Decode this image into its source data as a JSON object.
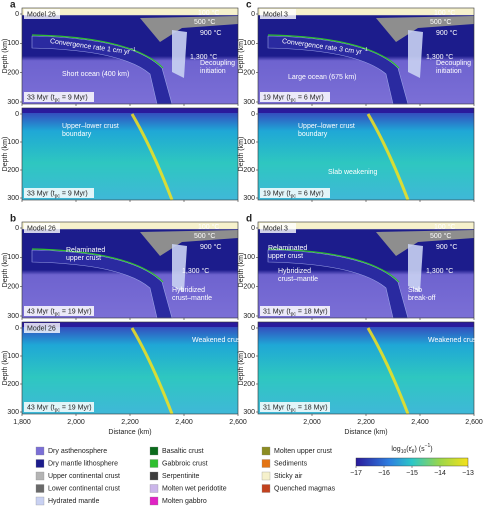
{
  "panels": [
    {
      "label": "a",
      "model": "Model 26",
      "time": [
        "33 Myr (t",
        "pc",
        " = 9 Myr)"
      ],
      "kind": "composition",
      "notes": [
        {
          "lines": [
            "100 °C"
          ]
        },
        {
          "lines": [
            "500 °C"
          ]
        },
        {
          "lines": [
            "900 °C"
          ]
        },
        {
          "lines": [
            "Convergence rate 1 cm yr"
          ],
          "sup": "−1"
        },
        {
          "lines": [
            "1,300 °C"
          ]
        },
        {
          "lines": [
            "Short ocean (400 km)"
          ]
        },
        {
          "lines": [
            "Decoupling",
            "initiation"
          ]
        }
      ]
    },
    {
      "label": "c",
      "model": "Model 3",
      "time": [
        "19 Myr (t",
        "pc",
        " = 6 Myr)"
      ],
      "kind": "composition",
      "notes": [
        {
          "lines": [
            "100 °C"
          ]
        },
        {
          "lines": [
            "500 °C"
          ]
        },
        {
          "lines": [
            "900 °C"
          ]
        },
        {
          "lines": [
            "Convergence rate 3 cm yr"
          ],
          "sup": "−1"
        },
        {
          "lines": [
            "1,300 °C"
          ]
        },
        {
          "lines": [
            "Large ocean (675 km)"
          ]
        },
        {
          "lines": [
            "Decoupling",
            "initiation"
          ]
        }
      ]
    },
    {
      "label": null,
      "model": null,
      "time": [
        "33 Myr (t",
        "pc",
        " = 9 Myr)"
      ],
      "kind": "strain",
      "notes": [
        {
          "lines": [
            "Upper–lower crust",
            "boundary"
          ]
        }
      ]
    },
    {
      "label": null,
      "model": null,
      "time": [
        "19 Myr (t",
        "pc",
        " = 6 Myr)"
      ],
      "kind": "strain",
      "notes": [
        {
          "lines": [
            "Upper–lower crust",
            "boundary"
          ]
        },
        {
          "lines": [
            "Slab weakening"
          ]
        }
      ]
    },
    {
      "label": "b",
      "model": "Model 26",
      "time": [
        "43 Myr (t",
        "pc",
        " = 19 Myr)"
      ],
      "kind": "composition",
      "notes": [
        {
          "lines": [
            "100 °C"
          ]
        },
        {
          "lines": [
            "500 °C"
          ]
        },
        {
          "lines": [
            "900 °C"
          ]
        },
        {
          "lines": [
            "1,300 °C"
          ]
        },
        {
          "lines": [
            "Relaminated",
            "upper crust"
          ]
        },
        {
          "lines": [
            "Hybridized",
            "crust–mantle"
          ]
        }
      ]
    },
    {
      "label": "d",
      "model": "Model 3",
      "time": [
        "31 Myr (t",
        "pc",
        " = 18 Myr)"
      ],
      "kind": "composition",
      "notes": [
        {
          "lines": [
            "100 °C"
          ]
        },
        {
          "lines": [
            "500 °C"
          ]
        },
        {
          "lines": [
            "900 °C"
          ]
        },
        {
          "lines": [
            "1,300 °C"
          ]
        },
        {
          "lines": [
            "Relaminated",
            "upper crust"
          ]
        },
        {
          "lines": [
            "Hybridized",
            "crust–mantle"
          ]
        },
        {
          "lines": [
            "Slab",
            "break-off"
          ]
        }
      ]
    },
    {
      "label": null,
      "model": "Model 26",
      "time": [
        "43 Myr (t",
        "pc",
        " = 19 Myr)"
      ],
      "kind": "strain",
      "notes": [
        {
          "lines": [
            "Weakened crust"
          ]
        }
      ]
    },
    {
      "label": null,
      "model": null,
      "time": [
        "31 Myr (t",
        "pc",
        " = 18 Myr)"
      ],
      "kind": "strain",
      "notes": [
        {
          "lines": [
            "Weakened crust"
          ]
        }
      ]
    }
  ],
  "y_axis": {
    "label": "Depth (km)",
    "ticks": [
      0,
      100,
      200,
      300
    ],
    "lim": [
      0,
      300
    ]
  },
  "x_axis": {
    "label": "Distance (km)",
    "lim": [
      1800,
      2600
    ],
    "left_ticks": [
      {
        "value": 1800,
        "label": "1,800"
      },
      {
        "value": 2000,
        "label": "2,000"
      },
      {
        "value": 2200,
        "label": "2,200"
      },
      {
        "value": 2400,
        "label": "2,400"
      },
      {
        "value": 2600,
        "label": "2,600"
      }
    ],
    "right_ticks": [
      {
        "value": 2000,
        "label": "2,000"
      },
      {
        "value": 2200,
        "label": "2,200"
      },
      {
        "value": 2400,
        "label": "2,400"
      },
      {
        "value": 2600,
        "label": "2,600"
      }
    ]
  },
  "legend": [
    {
      "name": "Dry asthenosphere",
      "color": "#7b6fd6"
    },
    {
      "name": "Dry mantle lithosphere",
      "color": "#1c1c8c"
    },
    {
      "name": "Upper continental crust",
      "color": "#b4b4b4"
    },
    {
      "name": "Lower continental crust",
      "color": "#6a6a6a"
    },
    {
      "name": "Hydrated mantle",
      "color": "#c9d1f2"
    },
    {
      "name": "Basaltic crust",
      "color": "#0b6b1c"
    },
    {
      "name": "Gabbroic crust",
      "color": "#2fbf2f"
    },
    {
      "name": "Serpentinite",
      "color": "#3d3d3d"
    },
    {
      "name": "Molten wet peridotite",
      "color": "#cbb6ea"
    },
    {
      "name": "Molten gabbro",
      "color": "#e023c4"
    },
    {
      "name": "Molten upper crust",
      "color": "#8c8c22"
    },
    {
      "name": "Sediments",
      "color": "#e37312"
    },
    {
      "name": "Sticky air",
      "color": "#f6f1cc"
    },
    {
      "name": "Quenched magmas",
      "color": "#c2421f"
    }
  ],
  "colorbar": {
    "title": [
      {
        "t": "log"
      },
      {
        "t": "10",
        "s": "sub"
      },
      {
        "t": "(ε̇"
      },
      {
        "t": "II",
        "s": "sub"
      },
      {
        "t": ") (s"
      },
      {
        "t": "−1",
        "s": "sup"
      },
      {
        "t": ")"
      }
    ],
    "lim": [
      -17,
      -13
    ],
    "ticks": [
      {
        "value": -17,
        "label": "−17"
      },
      {
        "value": -16,
        "label": "−16"
      },
      {
        "value": -15,
        "label": "−15"
      },
      {
        "value": -14,
        "label": "−14"
      },
      {
        "value": -13,
        "label": "−13"
      }
    ]
  }
}
